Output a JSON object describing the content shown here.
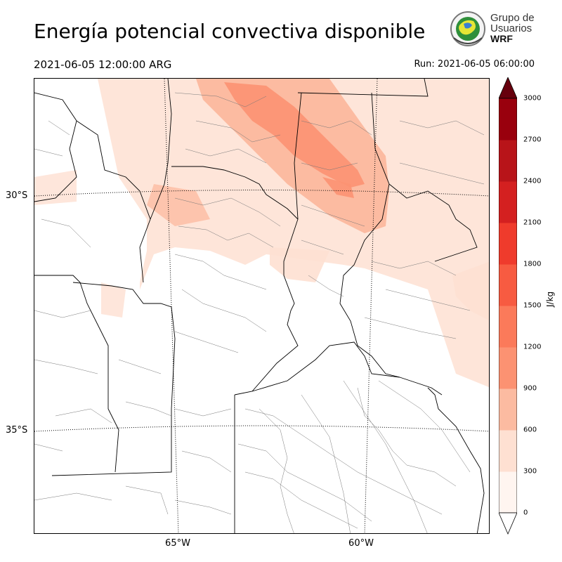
{
  "title": "Energía potencial convectiva disponible",
  "valid_time": "2021-06-05 12:00:00 ARG",
  "run_time": "Run: 2021-06-05 06:00:00",
  "logo": {
    "line1": "Grupo de",
    "line2": "Usuarios",
    "line3": "WRF"
  },
  "map": {
    "lat_labels": [
      "30°S",
      "35°S"
    ],
    "lon_labels": [
      "65°W",
      "60°W"
    ]
  },
  "colorbar": {
    "unit": "J/kg",
    "ticks": [
      "0",
      "300",
      "600",
      "900",
      "1200",
      "1500",
      "1800",
      "2100",
      "2400",
      "2700",
      "3000"
    ],
    "colors": [
      "#fff5f0",
      "#fee0d2",
      "#fcbba1",
      "#fc9272",
      "#fb7a5a",
      "#f75b41",
      "#ef3b2c",
      "#d42020",
      "#b81419",
      "#99000d",
      "#67000d"
    ],
    "extend": "both"
  }
}
